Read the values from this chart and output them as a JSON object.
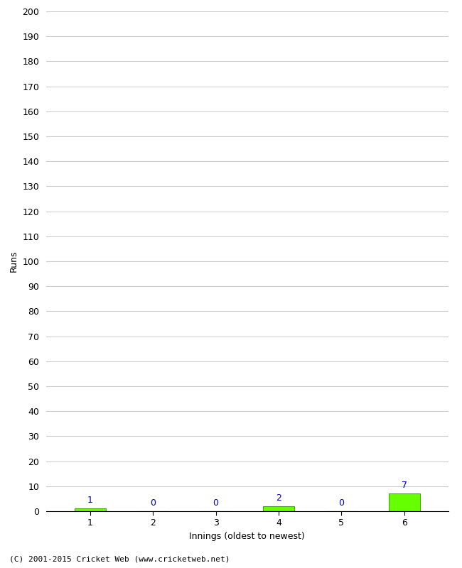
{
  "xlabel": "Innings (oldest to newest)",
  "ylabel": "Runs",
  "categories": [
    1,
    2,
    3,
    4,
    5,
    6
  ],
  "values": [
    1,
    0,
    0,
    2,
    0,
    7
  ],
  "bar_color": "#66ff00",
  "bar_edge_color": "#44aa00",
  "label_color": "#0000cc",
  "ylim": [
    0,
    200
  ],
  "ytick_step": 10,
  "background_color": "#ffffff",
  "grid_color": "#cccccc",
  "footer": "(C) 2001-2015 Cricket Web (www.cricketweb.net)"
}
